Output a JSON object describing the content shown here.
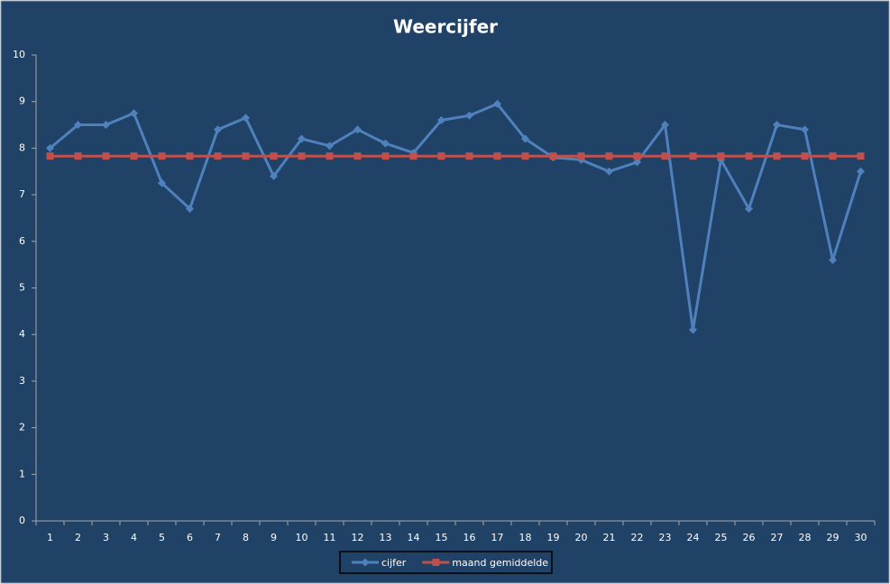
{
  "chart_data": {
    "type": "line",
    "title": "Weercijfer",
    "categories": [
      "1",
      "2",
      "3",
      "4",
      "5",
      "6",
      "7",
      "8",
      "9",
      "10",
      "11",
      "12",
      "13",
      "14",
      "15",
      "16",
      "17",
      "18",
      "19",
      "20",
      "21",
      "22",
      "23",
      "24",
      "25",
      "26",
      "27",
      "28",
      "29",
      "30"
    ],
    "series": [
      {
        "name": "cijfer",
        "color": "#4f81bd",
        "marker": "diamond",
        "values": [
          8.0,
          8.5,
          8.5,
          8.75,
          7.25,
          6.7,
          8.4,
          8.65,
          7.4,
          8.2,
          8.05,
          8.4,
          8.1,
          7.9,
          8.6,
          8.7,
          8.95,
          8.2,
          7.8,
          7.75,
          7.5,
          7.7,
          8.5,
          4.1,
          7.75,
          6.7,
          8.5,
          8.4,
          5.6,
          7.5
        ]
      },
      {
        "name": "maand gemiddelde",
        "color": "#c0504d",
        "marker": "square",
        "values": [
          7.83,
          7.83,
          7.83,
          7.83,
          7.83,
          7.83,
          7.83,
          7.83,
          7.83,
          7.83,
          7.83,
          7.83,
          7.83,
          7.83,
          7.83,
          7.83,
          7.83,
          7.83,
          7.83,
          7.83,
          7.83,
          7.83,
          7.83,
          7.83,
          7.83,
          7.83,
          7.83,
          7.83,
          7.83,
          7.83
        ]
      }
    ],
    "ylim": [
      0,
      10
    ],
    "yticks": [
      0,
      1,
      2,
      3,
      4,
      5,
      6,
      7,
      8,
      9,
      10
    ],
    "grid": false,
    "legend": "bottom"
  }
}
